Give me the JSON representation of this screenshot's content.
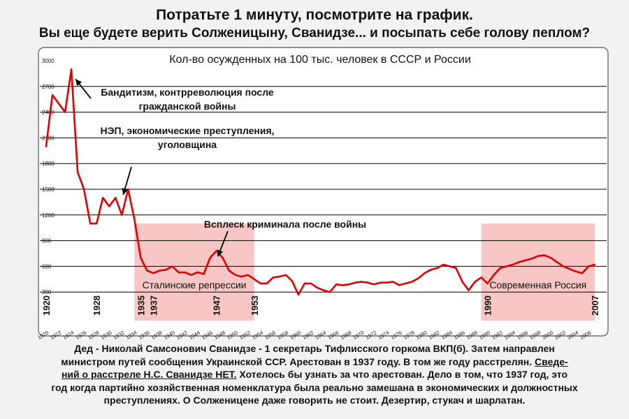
{
  "header": {
    "line1": "Потратьте 1 минуту, посмотрите на график.",
    "line2": "Вы еще будете верить Солженицыну, Сванидзе... и посыпать себе голову пеплом?"
  },
  "chart_data": {
    "type": "line",
    "title": "Кол-во осужденных на 100 тыс. человек в СССР и России",
    "xlabel": "",
    "ylabel": "",
    "xlim": [
      1920,
      2007
    ],
    "ylim": [
      0,
      3000
    ],
    "y_ticks": [
      300,
      600,
      900,
      1200,
      1500,
      1800,
      2100,
      2400,
      2700,
      3000
    ],
    "x_ticks": [
      1920,
      1922,
      1924,
      1926,
      1928,
      1930,
      1932,
      1934,
      1936,
      1938,
      1940,
      1942,
      1944,
      1946,
      1948,
      1950,
      1952,
      1954,
      1956,
      1958,
      1960,
      1962,
      1964,
      1966,
      1968,
      1970,
      1972,
      1974,
      1976,
      1978,
      1980,
      1982,
      1984,
      1986,
      1988,
      1990,
      1992,
      1994,
      1996,
      1998,
      2000,
      2002,
      2004,
      2006
    ],
    "major_years": [
      1920,
      1928,
      1935,
      1937,
      1947,
      1953,
      1990,
      2007
    ],
    "grid": true,
    "line_color": "#e00000",
    "shade_color": "#f9c6c6",
    "series": [
      {
        "x": [
          1920,
          1921,
          1922,
          1923,
          1924,
          1925,
          1926,
          1927,
          1928,
          1929,
          1930,
          1931,
          1932,
          1933,
          1934,
          1935,
          1936,
          1937,
          1938,
          1939,
          1940,
          1941,
          1942,
          1943,
          1944,
          1945,
          1946,
          1947,
          1948,
          1949,
          1950,
          1951,
          1952,
          1953,
          1954,
          1955,
          1956,
          1957,
          1958,
          1959,
          1960,
          1961,
          1962,
          1963,
          1964,
          1965,
          1966,
          1967,
          1968,
          1969,
          1970,
          1971,
          1972,
          1973,
          1974,
          1975,
          1976,
          1977,
          1978,
          1979,
          1980,
          1981,
          1982,
          1983,
          1984,
          1985,
          1986,
          1987,
          1988,
          1989,
          1990,
          1991,
          1992,
          1993,
          1994,
          1995,
          1996,
          1997,
          1998,
          1999,
          2000,
          2001,
          2002,
          2003,
          2004,
          2005,
          2006,
          2007
        ],
        "y": [
          2000,
          2600,
          2500,
          2400,
          2900,
          1700,
          1500,
          1100,
          1100,
          1400,
          1300,
          1400,
          1200,
          1500,
          1150,
          700,
          550,
          520,
          550,
          560,
          600,
          530,
          530,
          500,
          530,
          510,
          700,
          780,
          700,
          550,
          500,
          480,
          500,
          450,
          400,
          400,
          470,
          480,
          500,
          430,
          270,
          400,
          400,
          350,
          320,
          300,
          390,
          380,
          390,
          410,
          420,
          410,
          390,
          410,
          410,
          420,
          380,
          400,
          420,
          460,
          520,
          560,
          580,
          620,
          600,
          580,
          420,
          320,
          420,
          470,
          400,
          500,
          580,
          600,
          620,
          650,
          670,
          690,
          720,
          730,
          700,
          650,
          600,
          570,
          540,
          520,
          600,
          620
        ]
      }
    ],
    "shaded_regions": [
      {
        "from": 1934,
        "to": 1953,
        "label": "Сталинские репрессии"
      },
      {
        "from": 1989,
        "to": 2007,
        "label": "Современная Россия"
      }
    ],
    "annotations": [
      {
        "lines": [
          "Бандитизм, контрреволюция после",
          "гражданской войны"
        ],
        "year": 1924,
        "value": 2900
      },
      {
        "lines": [
          "НЭП, экономические преступления,",
          "уголовщина"
        ],
        "year": 1932,
        "value": 1500
      },
      {
        "lines": [
          "Всплеск криминала после войны"
        ],
        "year": 1947,
        "value": 780
      }
    ]
  },
  "footer": {
    "line1": "Дед - Николай Самсонович Сванидзе - 1 секретарь Тифлисского горкома ВКП(б). Затем направлен",
    "line2_a": "министром путей сообщения Украинской ССР. Арестован в 1937 году. В том же году расстрелян. ",
    "line2_b": "Сведе-",
    "line3_a": "ний о расстреле Н.С. Сванидзе НЕТ.",
    "line3_b": " Хотелось бы узнать за что арестован. Дело в том, что 1937 год, это",
    "line4": "год когда партийно хозяйственная номенклатура была реально замешана в экономических и должностных",
    "line5": "преступлениях. О Солженицене даже говорить не стоит. Дезертир, стукач и шарлатан."
  }
}
